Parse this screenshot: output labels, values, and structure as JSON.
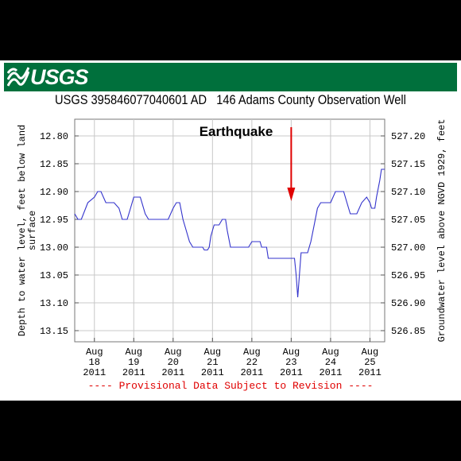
{
  "header": {
    "agency": "USGS",
    "title": "USGS 395846077040601 AD   146 Adams County Observation Well"
  },
  "footer": {
    "note": "---- Provisional Data Subject to Revision ----"
  },
  "colors": {
    "banner": "#00703c",
    "series": "#3333cc",
    "arrow": "#e00000",
    "footer": "#e00000"
  },
  "icons": {
    "logo": "usgs-wave-icon"
  },
  "chart_data": {
    "type": "line",
    "title": "",
    "annotation": "Earthquake",
    "annotation_arrow_x": "2011-08-23T00:00",
    "ylabel": "Depth to water level, feet below land surface",
    "ylabel_lines": [
      "Depth to water level, feet below land",
      "surface"
    ],
    "y2label": "Groundwater level above NGVD 1929, feet",
    "ylim": [
      13.17,
      12.77
    ],
    "y_inverted": true,
    "y_ticks": [
      "12.80",
      "12.85",
      "12.90",
      "12.95",
      "13.00",
      "13.05",
      "13.10",
      "13.15"
    ],
    "y2_ticks": [
      "527.20",
      "527.15",
      "527.10",
      "527.05",
      "527.00",
      "526.95",
      "526.90",
      "526.85"
    ],
    "xlim": [
      "2011-08-17T12:00",
      "2011-08-25T09:00"
    ],
    "x_ticks": [
      {
        "date": "2011-08-18",
        "line1": "Aug",
        "line2": "18",
        "line3": "2011"
      },
      {
        "date": "2011-08-19",
        "line1": "Aug",
        "line2": "19",
        "line3": "2011"
      },
      {
        "date": "2011-08-20",
        "line1": "Aug",
        "line2": "20",
        "line3": "2011"
      },
      {
        "date": "2011-08-21",
        "line1": "Aug",
        "line2": "21",
        "line3": "2011"
      },
      {
        "date": "2011-08-22",
        "line1": "Aug",
        "line2": "22",
        "line3": "2011"
      },
      {
        "date": "2011-08-23",
        "line1": "Aug",
        "line2": "23",
        "line3": "2011"
      },
      {
        "date": "2011-08-24",
        "line1": "Aug",
        "line2": "24",
        "line3": "2011"
      },
      {
        "date": "2011-08-25",
        "line1": "Aug",
        "line2": "25",
        "line3": "2011"
      }
    ],
    "grid": true,
    "series": [
      {
        "points": [
          [
            "2011-08-17T12:00",
            12.94
          ],
          [
            "2011-08-17T14:00",
            12.95
          ],
          [
            "2011-08-17T16:00",
            12.95
          ],
          [
            "2011-08-17T20:00",
            12.92
          ],
          [
            "2011-08-18T00:00",
            12.91
          ],
          [
            "2011-08-18T02:00",
            12.9
          ],
          [
            "2011-08-18T04:00",
            12.9
          ],
          [
            "2011-08-18T07:00",
            12.92
          ],
          [
            "2011-08-18T12:00",
            12.92
          ],
          [
            "2011-08-18T15:00",
            12.93
          ],
          [
            "2011-08-18T17:00",
            12.95
          ],
          [
            "2011-08-18T20:00",
            12.95
          ],
          [
            "2011-08-18T22:00",
            12.93
          ],
          [
            "2011-08-19T00:00",
            12.91
          ],
          [
            "2011-08-19T04:00",
            12.91
          ],
          [
            "2011-08-19T07:00",
            12.94
          ],
          [
            "2011-08-19T09:00",
            12.95
          ],
          [
            "2011-08-19T21:00",
            12.95
          ],
          [
            "2011-08-20T00:00",
            12.93
          ],
          [
            "2011-08-20T02:00",
            12.92
          ],
          [
            "2011-08-20T04:00",
            12.92
          ],
          [
            "2011-08-20T06:00",
            12.95
          ],
          [
            "2011-08-20T08:00",
            12.97
          ],
          [
            "2011-08-20T10:00",
            12.99
          ],
          [
            "2011-08-20T12:00",
            13.0
          ],
          [
            "2011-08-20T18:00",
            13.0
          ],
          [
            "2011-08-20T19:00",
            13.005
          ],
          [
            "2011-08-20T21:00",
            13.005
          ],
          [
            "2011-08-20T22:00",
            13.0
          ],
          [
            "2011-08-20T23:00",
            12.98
          ],
          [
            "2011-08-21T01:00",
            12.96
          ],
          [
            "2011-08-21T04:00",
            12.96
          ],
          [
            "2011-08-21T06:00",
            12.95
          ],
          [
            "2011-08-21T08:00",
            12.95
          ],
          [
            "2011-08-21T09:00",
            12.97
          ],
          [
            "2011-08-21T11:00",
            13.0
          ],
          [
            "2011-08-21T22:00",
            13.0
          ],
          [
            "2011-08-22T00:00",
            12.99
          ],
          [
            "2011-08-22T05:00",
            12.99
          ],
          [
            "2011-08-22T06:00",
            13.0
          ],
          [
            "2011-08-22T09:00",
            13.0
          ],
          [
            "2011-08-22T10:00",
            13.02
          ],
          [
            "2011-08-22T11:00",
            13.02
          ],
          [
            "2011-08-23T02:00",
            13.02
          ],
          [
            "2011-08-23T03:00",
            13.05
          ],
          [
            "2011-08-23T04:00",
            13.09
          ],
          [
            "2011-08-23T06:00",
            13.01
          ],
          [
            "2011-08-23T10:00",
            13.01
          ],
          [
            "2011-08-23T12:00",
            12.99
          ],
          [
            "2011-08-23T14:00",
            12.96
          ],
          [
            "2011-08-23T16:00",
            12.93
          ],
          [
            "2011-08-23T18:00",
            12.92
          ],
          [
            "2011-08-24T00:00",
            12.92
          ],
          [
            "2011-08-24T03:00",
            12.9
          ],
          [
            "2011-08-24T08:00",
            12.9
          ],
          [
            "2011-08-24T10:00",
            12.92
          ],
          [
            "2011-08-24T12:00",
            12.94
          ],
          [
            "2011-08-24T16:00",
            12.94
          ],
          [
            "2011-08-24T19:00",
            12.92
          ],
          [
            "2011-08-24T22:00",
            12.91
          ],
          [
            "2011-08-25T00:00",
            12.92
          ],
          [
            "2011-08-25T01:00",
            12.93
          ],
          [
            "2011-08-25T03:00",
            12.93
          ],
          [
            "2011-08-25T04:00",
            12.91
          ],
          [
            "2011-08-25T06:00",
            12.88
          ],
          [
            "2011-08-25T07:00",
            12.86
          ],
          [
            "2011-08-25T09:00",
            12.86
          ]
        ]
      }
    ]
  }
}
